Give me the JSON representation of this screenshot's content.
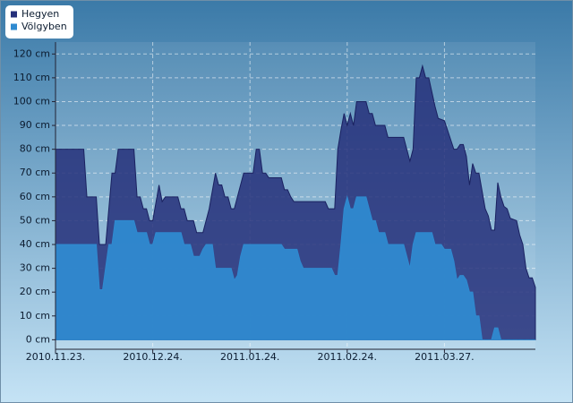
{
  "chart_data": {
    "type": "area",
    "legend": "top-left",
    "grid": true,
    "xlim": [
      "2010.11.23.",
      "2011.04.25."
    ],
    "xticks": [
      "2010.11.23.",
      "2010.12.24.",
      "2011.01.24.",
      "2011.02.24.",
      "2011.03.27."
    ],
    "ylim": [
      -4,
      125
    ],
    "yticks": [
      {
        "value": 0,
        "label": "0 cm"
      },
      {
        "value": 10,
        "label": "10 cm"
      },
      {
        "value": 20,
        "label": "20 cm"
      },
      {
        "value": 30,
        "label": "30 cm"
      },
      {
        "value": 40,
        "label": "40 cm"
      },
      {
        "value": 50,
        "label": "50 cm"
      },
      {
        "value": 60,
        "label": "60 cm"
      },
      {
        "value": 70,
        "label": "70 cm"
      },
      {
        "value": 80,
        "label": "80 cm"
      },
      {
        "value": 90,
        "label": "90 cm"
      },
      {
        "value": 100,
        "label": "100 cm"
      },
      {
        "value": 110,
        "label": "110 cm"
      },
      {
        "value": 120,
        "label": "120 cm"
      }
    ],
    "series": [
      {
        "name": "Hegyen",
        "color": "#26307a",
        "x": [
          "2010.11.23.",
          "2010.12.02.",
          "2010.12.03.",
          "2010.12.06.",
          "2010.12.07.",
          "2010.12.09.",
          "2010.12.11.",
          "2010.12.12.",
          "2010.12.13.",
          "2010.12.18.",
          "2010.12.19.",
          "2010.12.20.",
          "2010.12.21.",
          "2010.12.22.",
          "2010.12.23.",
          "2010.12.24.",
          "2010.12.26.",
          "2010.12.27.",
          "2010.12.28.",
          "2011.01.01.",
          "2011.01.02.",
          "2011.01.03.",
          "2011.01.04.",
          "2011.01.06.",
          "2011.01.07.",
          "2011.01.09.",
          "2011.01.11.",
          "2011.01.13.",
          "2011.01.14.",
          "2011.01.15.",
          "2011.01.16.",
          "2011.01.17.",
          "2011.01.18.",
          "2011.01.19.",
          "2011.01.21.",
          "2011.01.22.",
          "2011.01.25.",
          "2011.01.26.",
          "2011.01.27.",
          "2011.01.28.",
          "2011.01.29.",
          "2011.01.30.",
          "2011.02.03.",
          "2011.02.04.",
          "2011.02.05.",
          "2011.02.06.",
          "2011.02.07.",
          "2011.02.17.",
          "2011.02.18.",
          "2011.02.20.",
          "2011.02.21.",
          "2011.02.22.",
          "2011.02.23.",
          "2011.02.24.",
          "2011.02.25.",
          "2011.02.26.",
          "2011.02.27.",
          "2011.03.02.",
          "2011.03.03.",
          "2011.03.04.",
          "2011.03.05.",
          "2011.03.08.",
          "2011.03.09.",
          "2011.03.14.",
          "2011.03.16.",
          "2011.03.17.",
          "2011.03.18.",
          "2011.03.19.",
          "2011.03.20.",
          "2011.03.21.",
          "2011.03.22.",
          "2011.03.24.",
          "2011.03.25.",
          "2011.03.27.",
          "2011.03.28.",
          "2011.03.30.",
          "2011.03.31.",
          "2011.04.01.",
          "2011.04.02.",
          "2011.04.03.",
          "2011.04.04.",
          "2011.04.05.",
          "2011.04.06.",
          "2011.04.07.",
          "2011.04.09.",
          "2011.04.10.",
          "2011.04.11.",
          "2011.04.12.",
          "2011.04.13.",
          "2011.04.14.",
          "2011.04.15.",
          "2011.04.16.",
          "2011.04.17.",
          "2011.04.19.",
          "2011.04.20.",
          "2011.04.21.",
          "2011.04.22.",
          "2011.04.23.",
          "2011.04.24.",
          "2011.04.25."
        ],
        "values": [
          80,
          80,
          60,
          60,
          40,
          40,
          70,
          70,
          80,
          80,
          60,
          60,
          55,
          55,
          50,
          50,
          65,
          58,
          60,
          60,
          55,
          55,
          50,
          50,
          45,
          45,
          55,
          70,
          65,
          65,
          60,
          60,
          55,
          55,
          65,
          70,
          70,
          80,
          80,
          70,
          70,
          68,
          68,
          63,
          63,
          60,
          58,
          58,
          55,
          55,
          80,
          88,
          95,
          90,
          95,
          90,
          100,
          100,
          95,
          95,
          90,
          90,
          85,
          85,
          75,
          80,
          110,
          110,
          115,
          110,
          110,
          98,
          93,
          92,
          88,
          80,
          80,
          82,
          82,
          77,
          65,
          74,
          70,
          70,
          55,
          52,
          46,
          46,
          66,
          60,
          56,
          55,
          51,
          50,
          44,
          40,
          30,
          26,
          26,
          22
        ]
      },
      {
        "name": "Völgyben",
        "color": "#2f8ad0",
        "x": [
          "2010.11.23.",
          "2010.12.06.",
          "2010.12.07.",
          "2010.12.08.",
          "2010.12.10.",
          "2010.12.11.",
          "2010.12.12.",
          "2010.12.18.",
          "2010.12.19.",
          "2010.12.22.",
          "2010.12.23.",
          "2010.12.24.",
          "2010.12.25.",
          "2011.01.02.",
          "2011.01.03.",
          "2011.01.05.",
          "2011.01.06.",
          "2011.01.08.",
          "2011.01.09.",
          "2011.01.10.",
          "2011.01.12.",
          "2011.01.13.",
          "2011.01.18.",
          "2011.01.19.",
          "2011.01.20.",
          "2011.01.21.",
          "2011.01.22.",
          "2011.02.03.",
          "2011.02.04.",
          "2011.02.08.",
          "2011.02.09.",
          "2011.02.10.",
          "2011.02.19.",
          "2011.02.20.",
          "2011.02.21.",
          "2011.02.22.",
          "2011.02.23.",
          "2011.02.24.",
          "2011.02.25.",
          "2011.02.26.",
          "2011.02.27.",
          "2011.03.02.",
          "2011.03.03.",
          "2011.03.04.",
          "2011.03.05.",
          "2011.03.06.",
          "2011.03.08.",
          "2011.03.09.",
          "2011.03.14.",
          "2011.03.15.",
          "2011.03.16.",
          "2011.03.17.",
          "2011.03.18.",
          "2011.03.23.",
          "2011.03.24.",
          "2011.03.26.",
          "2011.03.27.",
          "2011.03.29.",
          "2011.03.30.",
          "2011.03.31.",
          "2011.04.01.",
          "2011.04.02.",
          "2011.04.03.",
          "2011.04.04.",
          "2011.04.05.",
          "2011.04.06.",
          "2011.04.07.",
          "2011.04.08.",
          "2011.04.11.",
          "2011.04.12.",
          "2011.04.13.",
          "2011.04.14.",
          "2011.04.25."
        ],
        "values": [
          40,
          40,
          21,
          21,
          40,
          40,
          50,
          50,
          45,
          45,
          40,
          40,
          45,
          45,
          40,
          40,
          35,
          35,
          38,
          40,
          40,
          30,
          30,
          25,
          27,
          35,
          40,
          40,
          38,
          38,
          33,
          30,
          30,
          27,
          27,
          40,
          55,
          60,
          55,
          55,
          60,
          60,
          55,
          50,
          50,
          45,
          45,
          40,
          40,
          35,
          30,
          40,
          45,
          45,
          40,
          40,
          38,
          38,
          33,
          25,
          27,
          27,
          25,
          20,
          20,
          10,
          10,
          0,
          0,
          5,
          5,
          0,
          0
        ]
      }
    ]
  }
}
